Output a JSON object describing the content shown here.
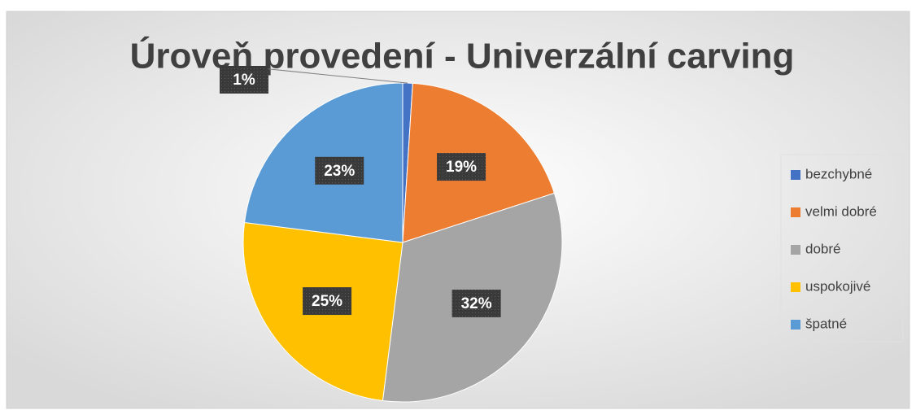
{
  "chart_data": {
    "type": "pie",
    "title": "Úroveň provedení - Univerzální carving",
    "categories": [
      "bezchybné",
      "velmi dobré",
      "dobré",
      "uspokojivé",
      "špatné"
    ],
    "values": [
      1,
      19,
      32,
      25,
      23
    ],
    "value_labels": [
      "1%",
      "19%",
      "32%",
      "25%",
      "23%"
    ],
    "colors": [
      "#4472c4",
      "#ed7d31",
      "#a5a5a5",
      "#ffc000",
      "#5b9bd5"
    ],
    "legend": "right"
  }
}
